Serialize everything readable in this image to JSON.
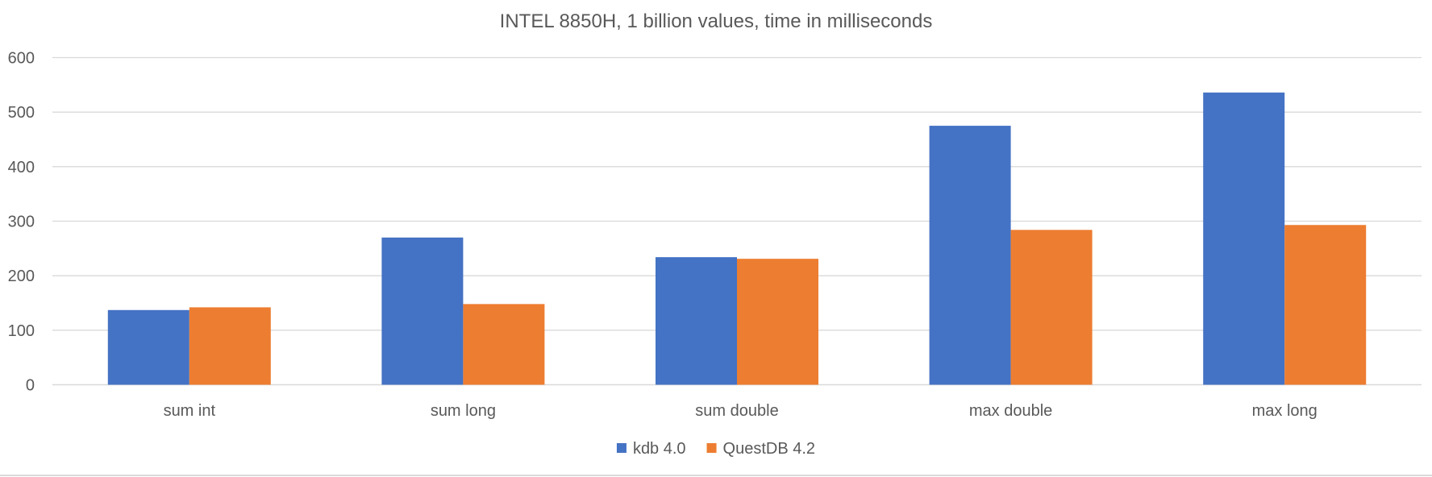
{
  "chart_data": {
    "type": "bar",
    "title": "INTEL 8850H, 1 billion values, time in milliseconds",
    "xlabel": "",
    "ylabel": "",
    "categories": [
      "sum int",
      "sum long",
      "sum double",
      "max double",
      "max long"
    ],
    "series": [
      {
        "name": "kdb 4.0",
        "color": "#4472C4",
        "values": [
          137,
          270,
          234,
          475,
          536
        ]
      },
      {
        "name": "QuestDB 4.2",
        "color": "#ED7D31",
        "values": [
          142,
          148,
          231,
          284,
          293
        ]
      }
    ],
    "ylim": [
      0,
      600
    ],
    "yticks": [
      "0",
      "100",
      "200",
      "300",
      "400",
      "500",
      "600"
    ],
    "grid": true,
    "legend_position": "bottom"
  }
}
